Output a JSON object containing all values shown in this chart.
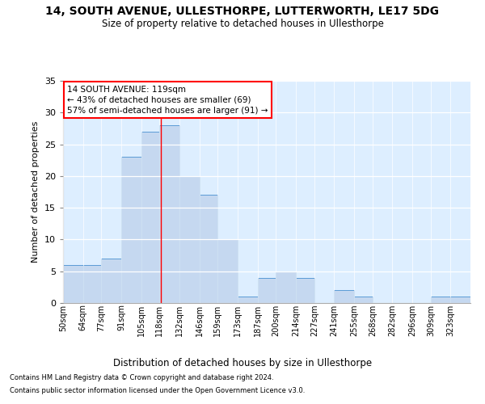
{
  "title": "14, SOUTH AVENUE, ULLESTHORPE, LUTTERWORTH, LE17 5DG",
  "subtitle": "Size of property relative to detached houses in Ullesthorpe",
  "xlabel": "Distribution of detached houses by size in Ullesthorpe",
  "ylabel": "Number of detached properties",
  "bar_labels": [
    "50sqm",
    "64sqm",
    "77sqm",
    "91sqm",
    "105sqm",
    "118sqm",
    "132sqm",
    "146sqm",
    "159sqm",
    "173sqm",
    "187sqm",
    "200sqm",
    "214sqm",
    "227sqm",
    "241sqm",
    "255sqm",
    "268sqm",
    "282sqm",
    "296sqm",
    "309sqm",
    "323sqm"
  ],
  "bar_values": [
    6,
    6,
    7,
    23,
    27,
    28,
    20,
    17,
    10,
    1,
    4,
    5,
    4,
    0,
    2,
    1,
    0,
    0,
    0,
    1,
    1
  ],
  "bar_color": "#c5d8f0",
  "bar_edge_color": "#5b9bd5",
  "property_line_x": 119,
  "bin_edges": [
    50,
    64,
    77,
    91,
    105,
    118,
    132,
    146,
    159,
    173,
    187,
    200,
    214,
    227,
    241,
    255,
    268,
    282,
    296,
    309,
    323,
    337
  ],
  "annotation_title": "14 SOUTH AVENUE: 119sqm",
  "annotation_line1": "← 43% of detached houses are smaller (69)",
  "annotation_line2": "57% of semi-detached houses are larger (91) →",
  "footer1": "Contains HM Land Registry data © Crown copyright and database right 2024.",
  "footer2": "Contains public sector information licensed under the Open Government Licence v3.0.",
  "background_color": "#ffffff",
  "plot_bg_color": "#ddeeff",
  "ylim": [
    0,
    35
  ],
  "yticks": [
    0,
    5,
    10,
    15,
    20,
    25,
    30,
    35
  ]
}
